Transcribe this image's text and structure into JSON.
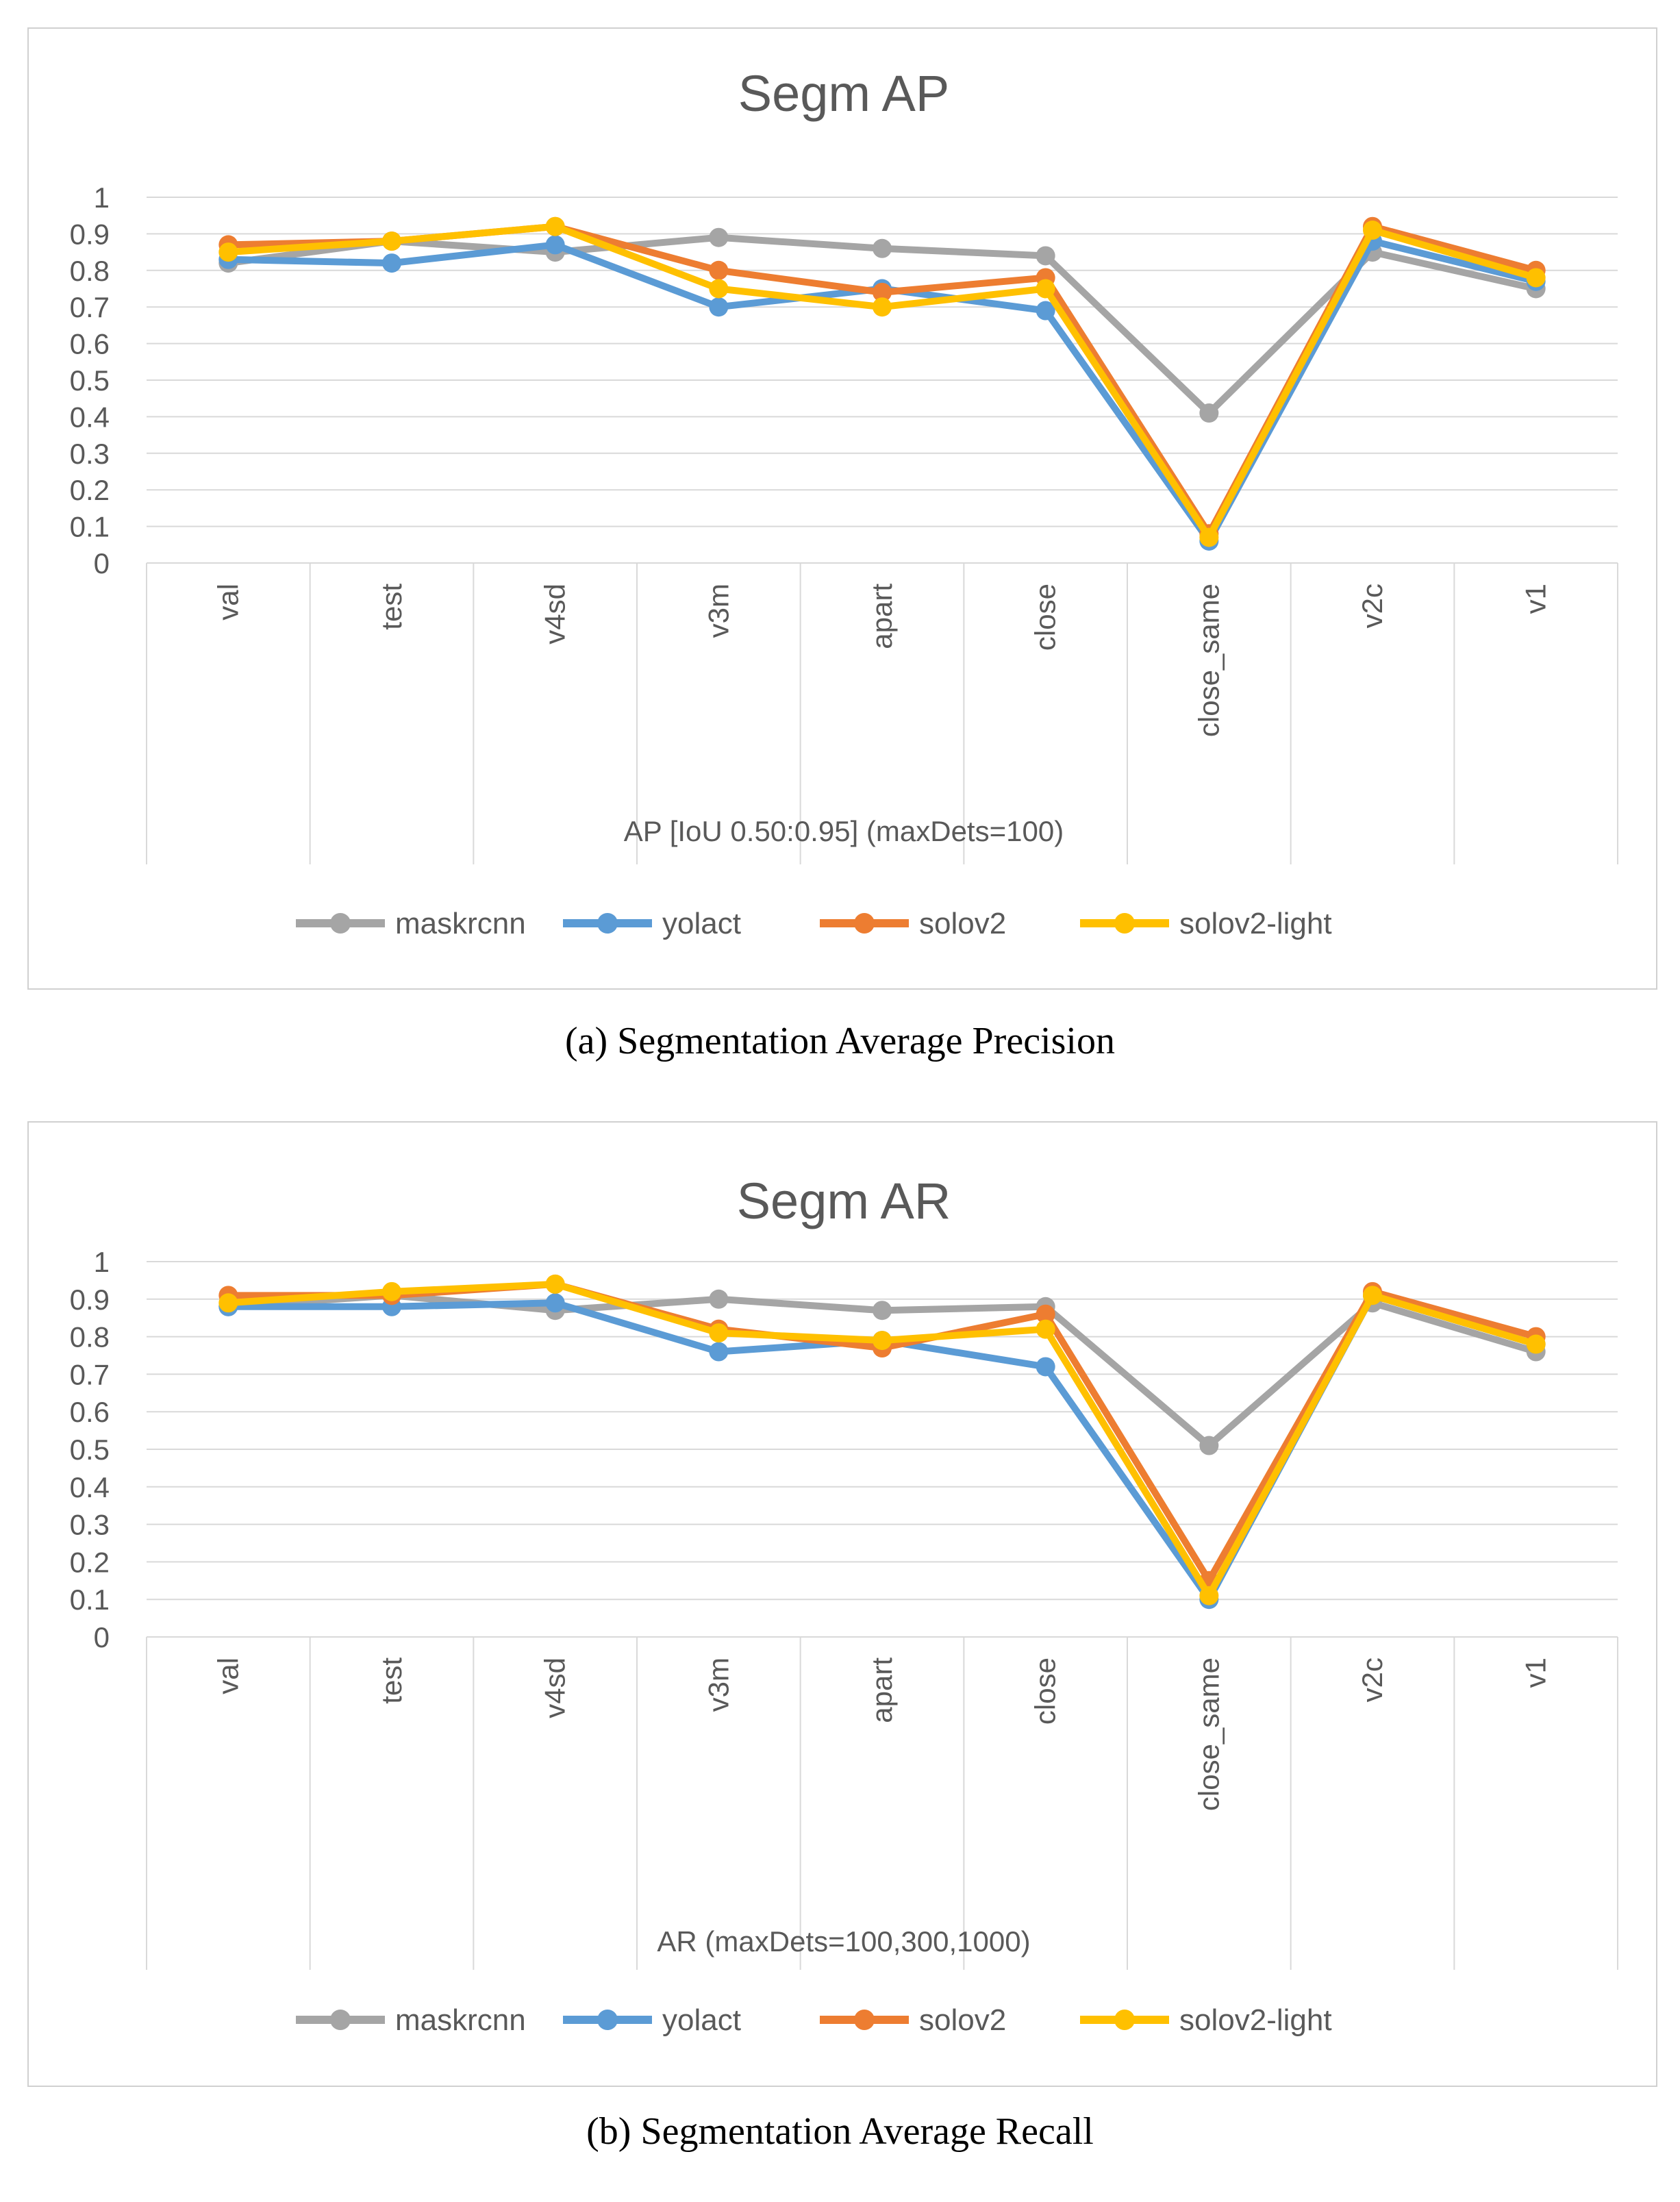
{
  "chart_data": [
    {
      "type": "line",
      "title": "Segm AP",
      "xlabel": "AP [IoU 0.50:0.95] (maxDets=100)",
      "ylabel": "",
      "ylim": [
        0,
        1
      ],
      "yticks": [
        "0",
        "0.1",
        "0.2",
        "0.3",
        "0.4",
        "0.5",
        "0.6",
        "0.7",
        "0.8",
        "0.9",
        "1"
      ],
      "grid": true,
      "legend_position": "bottom",
      "categories": [
        "val",
        "test",
        "v4sd",
        "v3m",
        "apart",
        "close",
        "close_same",
        "v2c",
        "v1"
      ],
      "series": [
        {
          "name": "maskrcnn",
          "color": "#a5a5a5",
          "values": [
            0.82,
            0.88,
            0.85,
            0.89,
            0.86,
            0.84,
            0.41,
            0.85,
            0.75
          ]
        },
        {
          "name": "yolact",
          "color": "#5b9bd5",
          "values": [
            0.83,
            0.82,
            0.87,
            0.7,
            0.75,
            0.69,
            0.06,
            0.88,
            0.77
          ]
        },
        {
          "name": "solov2",
          "color": "#ed7d31",
          "values": [
            0.87,
            0.88,
            0.92,
            0.8,
            0.74,
            0.78,
            0.08,
            0.92,
            0.8
          ]
        },
        {
          "name": "solov2-light",
          "color": "#ffc000",
          "values": [
            0.85,
            0.88,
            0.92,
            0.75,
            0.7,
            0.75,
            0.07,
            0.91,
            0.78
          ]
        }
      ]
    },
    {
      "type": "line",
      "title": "Segm AR",
      "xlabel": "AR (maxDets=100,300,1000)",
      "ylabel": "",
      "ylim": [
        0,
        1
      ],
      "yticks": [
        "0",
        "0.1",
        "0.2",
        "0.3",
        "0.4",
        "0.5",
        "0.6",
        "0.7",
        "0.8",
        "0.9",
        "1"
      ],
      "grid": true,
      "legend_position": "bottom",
      "categories": [
        "val",
        "test",
        "v4sd",
        "v3m",
        "apart",
        "close",
        "close_same",
        "v2c",
        "v1"
      ],
      "series": [
        {
          "name": "maskrcnn",
          "color": "#a5a5a5",
          "values": [
            0.88,
            0.91,
            0.87,
            0.9,
            0.87,
            0.88,
            0.51,
            0.89,
            0.76
          ]
        },
        {
          "name": "yolact",
          "color": "#5b9bd5",
          "values": [
            0.88,
            0.88,
            0.89,
            0.76,
            0.79,
            0.72,
            0.1,
            0.91,
            0.78
          ]
        },
        {
          "name": "solov2",
          "color": "#ed7d31",
          "values": [
            0.91,
            0.91,
            0.94,
            0.82,
            0.77,
            0.86,
            0.15,
            0.92,
            0.8
          ]
        },
        {
          "name": "solov2-light",
          "color": "#ffc000",
          "values": [
            0.89,
            0.92,
            0.94,
            0.81,
            0.79,
            0.82,
            0.11,
            0.91,
            0.78
          ]
        }
      ]
    }
  ],
  "captions": {
    "a": "(a)  Segmentation Average Precision",
    "b": "(b)  Segmentation Average Recall"
  }
}
